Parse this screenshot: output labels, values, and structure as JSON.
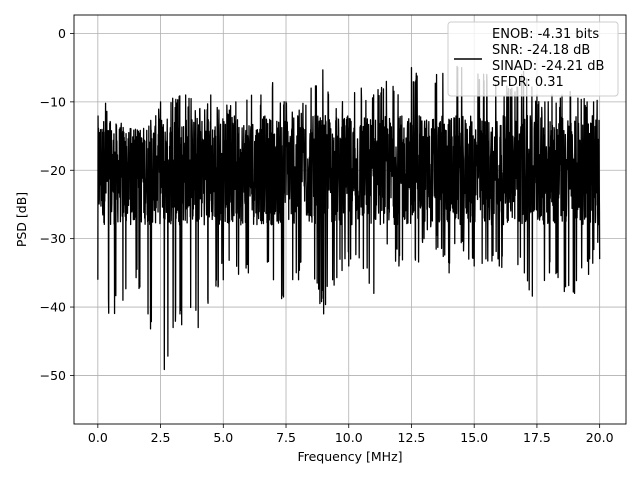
{
  "chart_data": {
    "type": "line",
    "title": "",
    "xlabel": "Frequency [MHz]",
    "ylabel": "PSD [dB]",
    "xlim": [
      -0.95,
      21.05
    ],
    "ylim": [
      -57.1,
      2.7
    ],
    "xticks": [
      0.0,
      2.5,
      5.0,
      7.5,
      10.0,
      12.5,
      15.0,
      17.5,
      20.0
    ],
    "xtick_labels": [
      "0.0",
      "2.5",
      "5.0",
      "7.5",
      "10.0",
      "12.5",
      "15.0",
      "17.5",
      "20.0"
    ],
    "yticks": [
      0,
      -10,
      -20,
      -30,
      -40,
      -50
    ],
    "ytick_labels": [
      "0",
      "−10",
      "−20",
      "−30",
      "−40",
      "−50"
    ],
    "grid": true,
    "legend_position": "top-right",
    "legend": {
      "line_color": "#000000",
      "lines": [
        "ENOB: -4.31 bits",
        "SNR: -24.18 dB",
        "SINAD: -24.21 dB",
        "SFDR: 0.31"
      ]
    },
    "series": [
      {
        "color": "#000000",
        "envelope": {
          "x": [
            0.0,
            0.5,
            1.0,
            1.5,
            2.0,
            2.5,
            3.0,
            3.5,
            4.0,
            4.5,
            5.0,
            5.5,
            6.0,
            6.5,
            7.0,
            7.5,
            8.0,
            8.5,
            9.0,
            9.5,
            10.0,
            10.5,
            11.0,
            11.5,
            12.0,
            12.5,
            13.0,
            13.5,
            14.0,
            14.5,
            15.0,
            15.5,
            16.0,
            16.5,
            17.0,
            17.5,
            18.0,
            18.5,
            19.0,
            19.5,
            20.0
          ],
          "upper": [
            -2.8,
            -13.0,
            -13.0,
            -14.0,
            -13.0,
            -10.0,
            -9.0,
            -9.0,
            -10.0,
            -9.0,
            -10.5,
            -10.0,
            -9.0,
            -9.0,
            -6.0,
            -10.0,
            -11.0,
            -8.0,
            -5.0,
            -11.0,
            -6.0,
            -8.0,
            -8.0,
            -7.0,
            -8.0,
            -5.0,
            -6.5,
            -6.0,
            -3.0,
            -5.0,
            -5.0,
            -6.0,
            -7.0,
            -8.0,
            -5.0,
            -9.0,
            -9.0,
            -9.0,
            -8.0,
            -10.0,
            -9.0
          ],
          "lower": [
            -36.0,
            -42.5,
            -39.0,
            -36.0,
            -41.0,
            -54.0,
            -43.0,
            -42.5,
            -43.0,
            -39.0,
            -36.0,
            -36.0,
            -35.0,
            -35.0,
            -36.0,
            -41.0,
            -36.0,
            -36.0,
            -41.0,
            -36.0,
            -34.0,
            -35.0,
            -38.0,
            -32.0,
            -34.0,
            -38.0,
            -30.0,
            -32.0,
            -35.0,
            -32.0,
            -34.0,
            -36.0,
            -34.0,
            -37.0,
            -35.0,
            -42.5,
            -35.0,
            -38.0,
            -38.0,
            -36.0,
            -33.0
          ],
          "typical_range": [
            -28.0,
            -12.0
          ]
        }
      }
    ]
  }
}
